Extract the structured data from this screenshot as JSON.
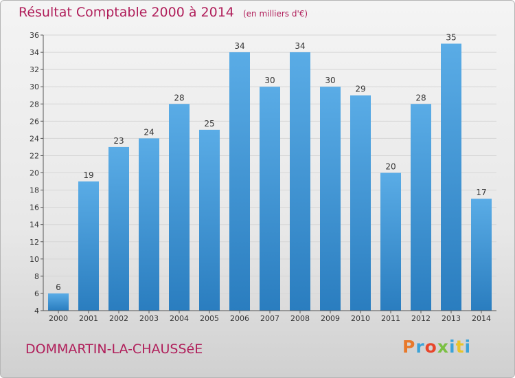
{
  "header": {
    "title": "Résultat Comptable 2000 à 2014",
    "unit": "(en milliers d'€)"
  },
  "footer": {
    "town": "DOMMARTIN-LA-CHAUSSéE",
    "logo": "Proxiti",
    "logo_colors": [
      "#e8792b",
      "#3ba3d8",
      "#e8462b",
      "#7bc043",
      "#3ba3d8",
      "#e8c42b",
      "#3ba3d8"
    ]
  },
  "colors": {
    "bar_light": "#5aace6",
    "bar_dark": "#2a7dbf",
    "title": "#b01e5a"
  },
  "chart_data": {
    "type": "bar",
    "title": "Résultat Comptable 2000 à 2014",
    "xlabel": "",
    "ylabel": "",
    "categories": [
      "2000",
      "2001",
      "2002",
      "2003",
      "2004",
      "2005",
      "2006",
      "2007",
      "2008",
      "2009",
      "2010",
      "2011",
      "2012",
      "2013",
      "2014"
    ],
    "values": [
      6,
      19,
      23,
      24,
      28,
      25,
      34,
      30,
      34,
      30,
      29,
      20,
      28,
      35,
      17
    ],
    "ylim": [
      4,
      36
    ],
    "yticks": [
      4,
      6,
      8,
      10,
      12,
      14,
      16,
      18,
      20,
      22,
      24,
      26,
      28,
      30,
      32,
      34,
      36
    ],
    "grid": true
  }
}
